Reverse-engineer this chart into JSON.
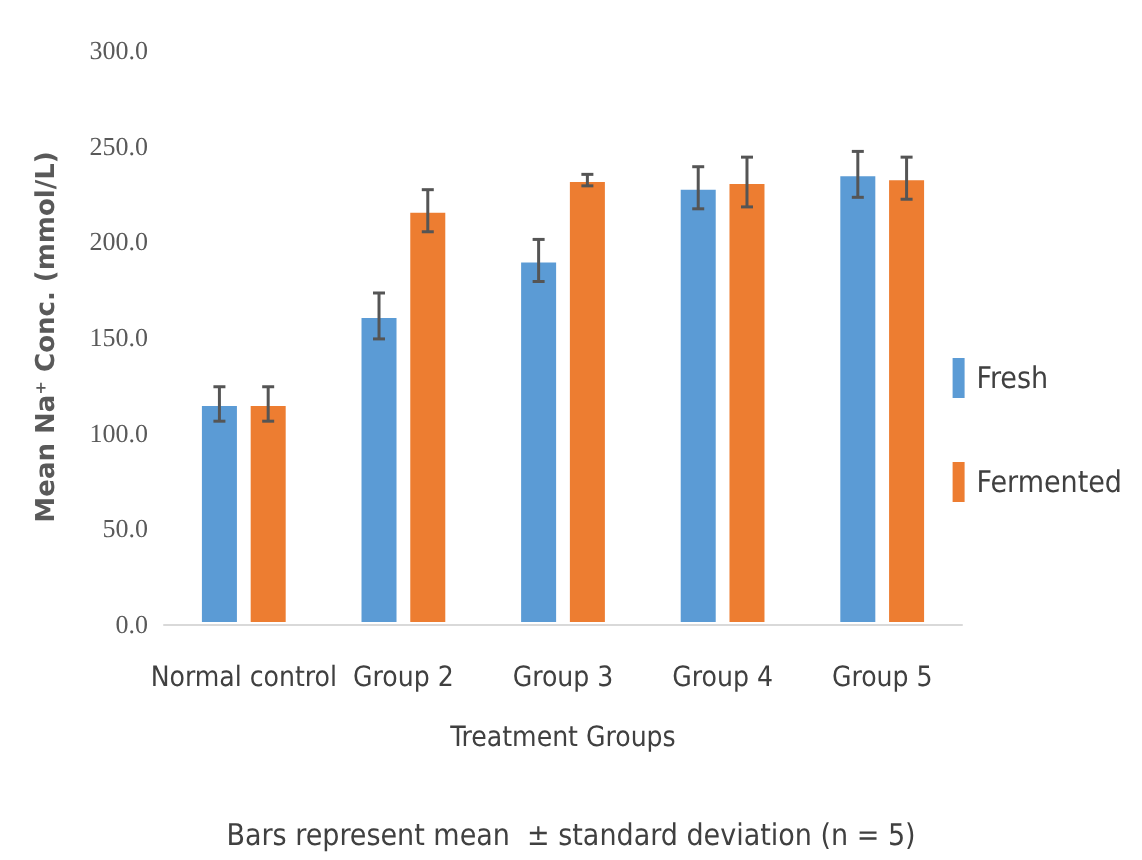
{
  "chart_data": {
    "type": "bar",
    "xlabel": "Treatment Groups",
    "ylabel": "Mean Na⁺ Conc. (mmol/L)",
    "categories": [
      "Normal control",
      "Group 2",
      "Group 3",
      "Group 4",
      "Group 5"
    ],
    "series": [
      {
        "name": "Fresh",
        "color": "#5b9bd5",
        "values": [
          115,
          161,
          190,
          228,
          235
        ],
        "errors": [
          9,
          12,
          11,
          11,
          12
        ]
      },
      {
        "name": "Fermented",
        "color": "#ed7d31",
        "values": [
          115,
          216,
          232,
          231,
          233
        ],
        "errors": [
          9,
          11,
          3,
          13,
          11
        ]
      }
    ],
    "ylim": [
      0,
      300
    ],
    "yticks": [
      {
        "value": 0,
        "label": "0.0"
      },
      {
        "value": 50,
        "label": "50.0"
      },
      {
        "value": 100,
        "label": "100.0"
      },
      {
        "value": 150,
        "label": "150.0"
      },
      {
        "value": 200,
        "label": "200.0"
      },
      {
        "value": 250,
        "label": "250.0"
      },
      {
        "value": 300,
        "label": "300.0"
      }
    ],
    "grid": false,
    "legend": "right",
    "annotations": [
      "Bars represent mean  ± standard deviation (n = 5)"
    ]
  }
}
